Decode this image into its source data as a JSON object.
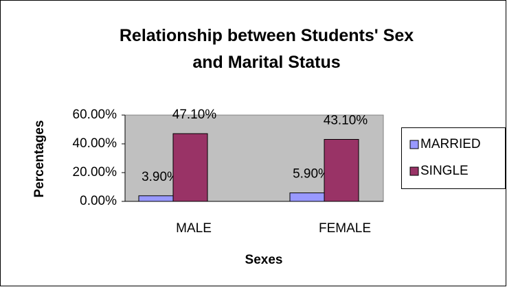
{
  "chart_data": {
    "type": "bar",
    "title": "Relationship between Students' Sex and Marital Status",
    "x_label": "Sexes",
    "y_label": "Percentages",
    "categories": [
      "MALE",
      "FEMALE"
    ],
    "series": [
      {
        "name": "MARRIED",
        "color": "#9999ff",
        "values": [
          3.9,
          5.9
        ],
        "value_labels": [
          "3.90%",
          "5.90%"
        ]
      },
      {
        "name": "SINGLE",
        "color": "#993366",
        "values": [
          47.1,
          43.1
        ],
        "value_labels": [
          "47.10%",
          "43.10%"
        ]
      }
    ],
    "ylim": [
      0,
      60
    ],
    "yticks": [
      {
        "value": 0,
        "label": "0.00%"
      },
      {
        "value": 20,
        "label": "20.00%"
      },
      {
        "value": 40,
        "label": "40.00%"
      },
      {
        "value": 60,
        "label": "60.00%"
      }
    ],
    "legend": "right"
  }
}
